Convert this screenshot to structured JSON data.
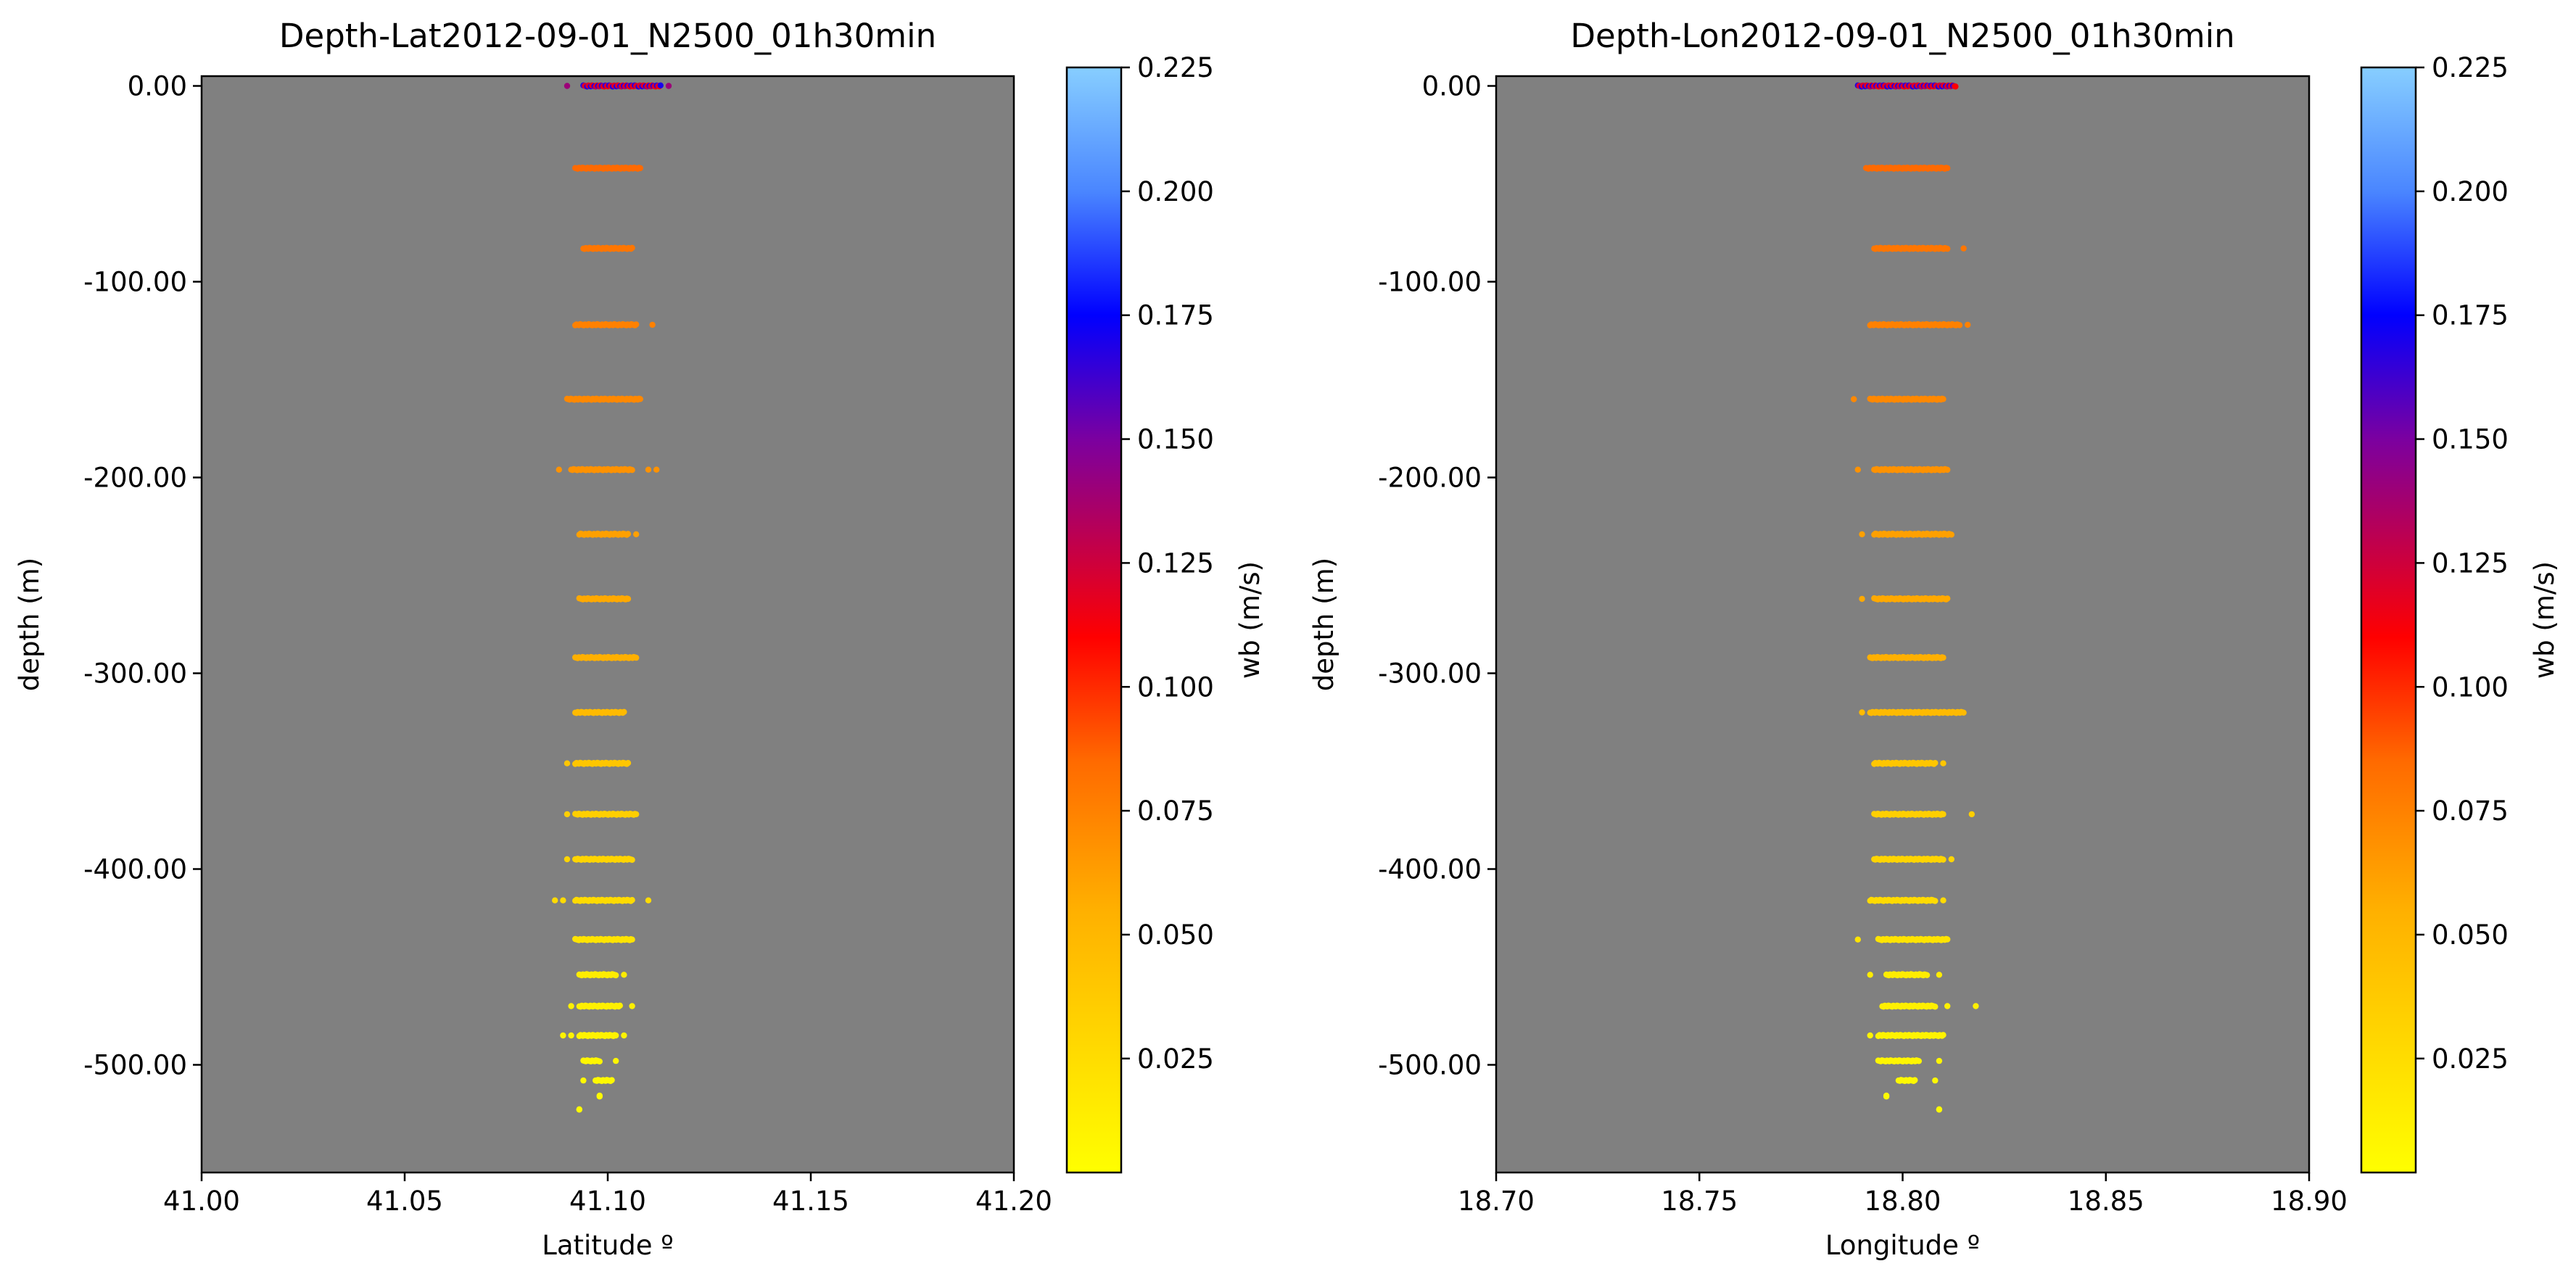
{
  "colorbar_ticks": [
    0.025,
    0.05,
    0.075,
    0.1,
    0.125,
    0.15,
    0.175,
    0.2,
    0.225
  ],
  "colorbar_tick_labels": [
    "0.025",
    "0.050",
    "0.075",
    "0.100",
    "0.125",
    "0.150",
    "0.175",
    "0.200",
    "0.225"
  ],
  "colormap_stops": [
    {
      "v": 0.002,
      "color": "#ffff00"
    },
    {
      "v": 0.055,
      "color": "#ffb000"
    },
    {
      "v": 0.085,
      "color": "#ff6a00"
    },
    {
      "v": 0.11,
      "color": "#ff0000"
    },
    {
      "v": 0.15,
      "color": "#7b00a0"
    },
    {
      "v": 0.175,
      "color": "#0000ff"
    },
    {
      "v": 0.2,
      "color": "#4a86ff"
    },
    {
      "v": 0.225,
      "color": "#87ceff"
    }
  ],
  "colorbar_range": [
    0.002,
    0.225
  ],
  "plot_background": "#808080",
  "chart_data": [
    {
      "type": "scatter",
      "title": "Depth-Lat2012-09-01_N2500_01h30min",
      "xlabel": "Latitude º",
      "ylabel": "depth (m)",
      "colorbar_label": "wb (m/s)",
      "xlim": [
        41.0,
        41.2
      ],
      "ylim": [
        -555,
        5
      ],
      "x_ticks": [
        41.0,
        41.05,
        41.1,
        41.15,
        41.2
      ],
      "x_tick_labels": [
        "41.00",
        "41.05",
        "41.10",
        "41.15",
        "41.20"
      ],
      "y_ticks": [
        0,
        -100,
        -200,
        -300,
        -400,
        -500
      ],
      "y_tick_labels": [
        "0.00",
        "-100.00",
        "-200.00",
        "-300.00",
        "-400.00",
        "-500.00"
      ],
      "layers": [
        {
          "depth": 0,
          "x_min": 41.094,
          "x_max": 41.113,
          "wb": 0.14,
          "outliers": [
            41.09,
            41.115
          ]
        },
        {
          "depth": -42,
          "x_min": 41.092,
          "x_max": 41.108,
          "wb": 0.085,
          "outliers": []
        },
        {
          "depth": -83,
          "x_min": 41.094,
          "x_max": 41.106,
          "wb": 0.08,
          "outliers": []
        },
        {
          "depth": -122,
          "x_min": 41.092,
          "x_max": 41.107,
          "wb": 0.075,
          "outliers": [
            41.111
          ]
        },
        {
          "depth": -160,
          "x_min": 41.09,
          "x_max": 41.108,
          "wb": 0.072,
          "outliers": []
        },
        {
          "depth": -196,
          "x_min": 41.091,
          "x_max": 41.106,
          "wb": 0.068,
          "outliers": [
            41.088,
            41.11,
            41.112
          ]
        },
        {
          "depth": -229,
          "x_min": 41.093,
          "x_max": 41.105,
          "wb": 0.062,
          "outliers": [
            41.107
          ]
        },
        {
          "depth": -262,
          "x_min": 41.093,
          "x_max": 41.105,
          "wb": 0.058,
          "outliers": []
        },
        {
          "depth": -292,
          "x_min": 41.092,
          "x_max": 41.107,
          "wb": 0.055,
          "outliers": []
        },
        {
          "depth": -320,
          "x_min": 41.092,
          "x_max": 41.104,
          "wb": 0.048,
          "outliers": []
        },
        {
          "depth": -346,
          "x_min": 41.092,
          "x_max": 41.105,
          "wb": 0.04,
          "outliers": [
            41.09
          ]
        },
        {
          "depth": -372,
          "x_min": 41.092,
          "x_max": 41.107,
          "wb": 0.034,
          "outliers": [
            41.09
          ]
        },
        {
          "depth": -395,
          "x_min": 41.092,
          "x_max": 41.106,
          "wb": 0.03,
          "outliers": [
            41.09
          ]
        },
        {
          "depth": -416,
          "x_min": 41.092,
          "x_max": 41.106,
          "wb": 0.026,
          "outliers": [
            41.087,
            41.089,
            41.11
          ]
        },
        {
          "depth": -436,
          "x_min": 41.092,
          "x_max": 41.106,
          "wb": 0.02,
          "outliers": []
        },
        {
          "depth": -454,
          "x_min": 41.093,
          "x_max": 41.102,
          "wb": 0.015,
          "outliers": [
            41.104
          ]
        },
        {
          "depth": -470,
          "x_min": 41.093,
          "x_max": 41.103,
          "wb": 0.012,
          "outliers": [
            41.091,
            41.106
          ]
        },
        {
          "depth": -485,
          "x_min": 41.093,
          "x_max": 41.102,
          "wb": 0.01,
          "outliers": [
            41.089,
            41.091,
            41.104
          ]
        },
        {
          "depth": -498,
          "x_min": 41.094,
          "x_max": 41.098,
          "wb": 0.008,
          "outliers": [
            41.102
          ]
        },
        {
          "depth": -508,
          "x_min": 41.097,
          "x_max": 41.101,
          "wb": 0.006,
          "outliers": [
            41.094
          ]
        },
        {
          "depth": -516,
          "x_min": 41.098,
          "x_max": 41.098,
          "wb": 0.005,
          "outliers": []
        },
        {
          "depth": -523,
          "x_min": 41.093,
          "x_max": 41.093,
          "wb": 0.004,
          "outliers": []
        }
      ]
    },
    {
      "type": "scatter",
      "title": "Depth-Lon2012-09-01_N2500_01h30min",
      "xlabel": "Longitude º",
      "ylabel": "depth (m)",
      "colorbar_label": "wb (m/s)",
      "xlim": [
        18.7,
        18.9
      ],
      "ylim": [
        -555,
        5
      ],
      "x_ticks": [
        18.7,
        18.75,
        18.8,
        18.85,
        18.9
      ],
      "x_tick_labels": [
        "18.70",
        "18.75",
        "18.80",
        "18.85",
        "18.90"
      ],
      "y_ticks": [
        0,
        -100,
        -200,
        -300,
        -400,
        -500
      ],
      "y_tick_labels": [
        "0.00",
        "-100.00",
        "-200.00",
        "-300.00",
        "-400.00",
        "-500.00"
      ],
      "layers": [
        {
          "depth": 0,
          "x_min": 18.789,
          "x_max": 18.813,
          "wb": 0.14,
          "outliers": []
        },
        {
          "depth": -42,
          "x_min": 18.791,
          "x_max": 18.811,
          "wb": 0.085,
          "outliers": []
        },
        {
          "depth": -83,
          "x_min": 18.793,
          "x_max": 18.811,
          "wb": 0.08,
          "outliers": [
            18.815
          ]
        },
        {
          "depth": -122,
          "x_min": 18.792,
          "x_max": 18.814,
          "wb": 0.075,
          "outliers": [
            18.816
          ]
        },
        {
          "depth": -160,
          "x_min": 18.792,
          "x_max": 18.81,
          "wb": 0.072,
          "outliers": [
            18.788
          ]
        },
        {
          "depth": -196,
          "x_min": 18.793,
          "x_max": 18.811,
          "wb": 0.068,
          "outliers": [
            18.789
          ]
        },
        {
          "depth": -229,
          "x_min": 18.793,
          "x_max": 18.812,
          "wb": 0.062,
          "outliers": [
            18.79
          ]
        },
        {
          "depth": -262,
          "x_min": 18.793,
          "x_max": 18.811,
          "wb": 0.058,
          "outliers": [
            18.79
          ]
        },
        {
          "depth": -292,
          "x_min": 18.792,
          "x_max": 18.81,
          "wb": 0.055,
          "outliers": []
        },
        {
          "depth": -320,
          "x_min": 18.792,
          "x_max": 18.815,
          "wb": 0.048,
          "outliers": [
            18.79
          ]
        },
        {
          "depth": -346,
          "x_min": 18.793,
          "x_max": 18.808,
          "wb": 0.04,
          "outliers": [
            18.81
          ]
        },
        {
          "depth": -372,
          "x_min": 18.793,
          "x_max": 18.81,
          "wb": 0.034,
          "outliers": [
            18.817
          ]
        },
        {
          "depth": -395,
          "x_min": 18.793,
          "x_max": 18.81,
          "wb": 0.03,
          "outliers": [
            18.812
          ]
        },
        {
          "depth": -416,
          "x_min": 18.792,
          "x_max": 18.808,
          "wb": 0.026,
          "outliers": [
            18.81
          ]
        },
        {
          "depth": -436,
          "x_min": 18.794,
          "x_max": 18.811,
          "wb": 0.02,
          "outliers": [
            18.789
          ]
        },
        {
          "depth": -454,
          "x_min": 18.796,
          "x_max": 18.806,
          "wb": 0.015,
          "outliers": [
            18.792,
            18.809
          ]
        },
        {
          "depth": -470,
          "x_min": 18.795,
          "x_max": 18.808,
          "wb": 0.012,
          "outliers": [
            18.811,
            18.818
          ]
        },
        {
          "depth": -485,
          "x_min": 18.794,
          "x_max": 18.81,
          "wb": 0.01,
          "outliers": [
            18.792
          ]
        },
        {
          "depth": -498,
          "x_min": 18.794,
          "x_max": 18.804,
          "wb": 0.008,
          "outliers": [
            18.809
          ]
        },
        {
          "depth": -508,
          "x_min": 18.799,
          "x_max": 18.803,
          "wb": 0.006,
          "outliers": [
            18.808
          ]
        },
        {
          "depth": -516,
          "x_min": 18.796,
          "x_max": 18.796,
          "wb": 0.005,
          "outliers": []
        },
        {
          "depth": -523,
          "x_min": 18.809,
          "x_max": 18.809,
          "wb": 0.004,
          "outliers": []
        }
      ]
    }
  ]
}
